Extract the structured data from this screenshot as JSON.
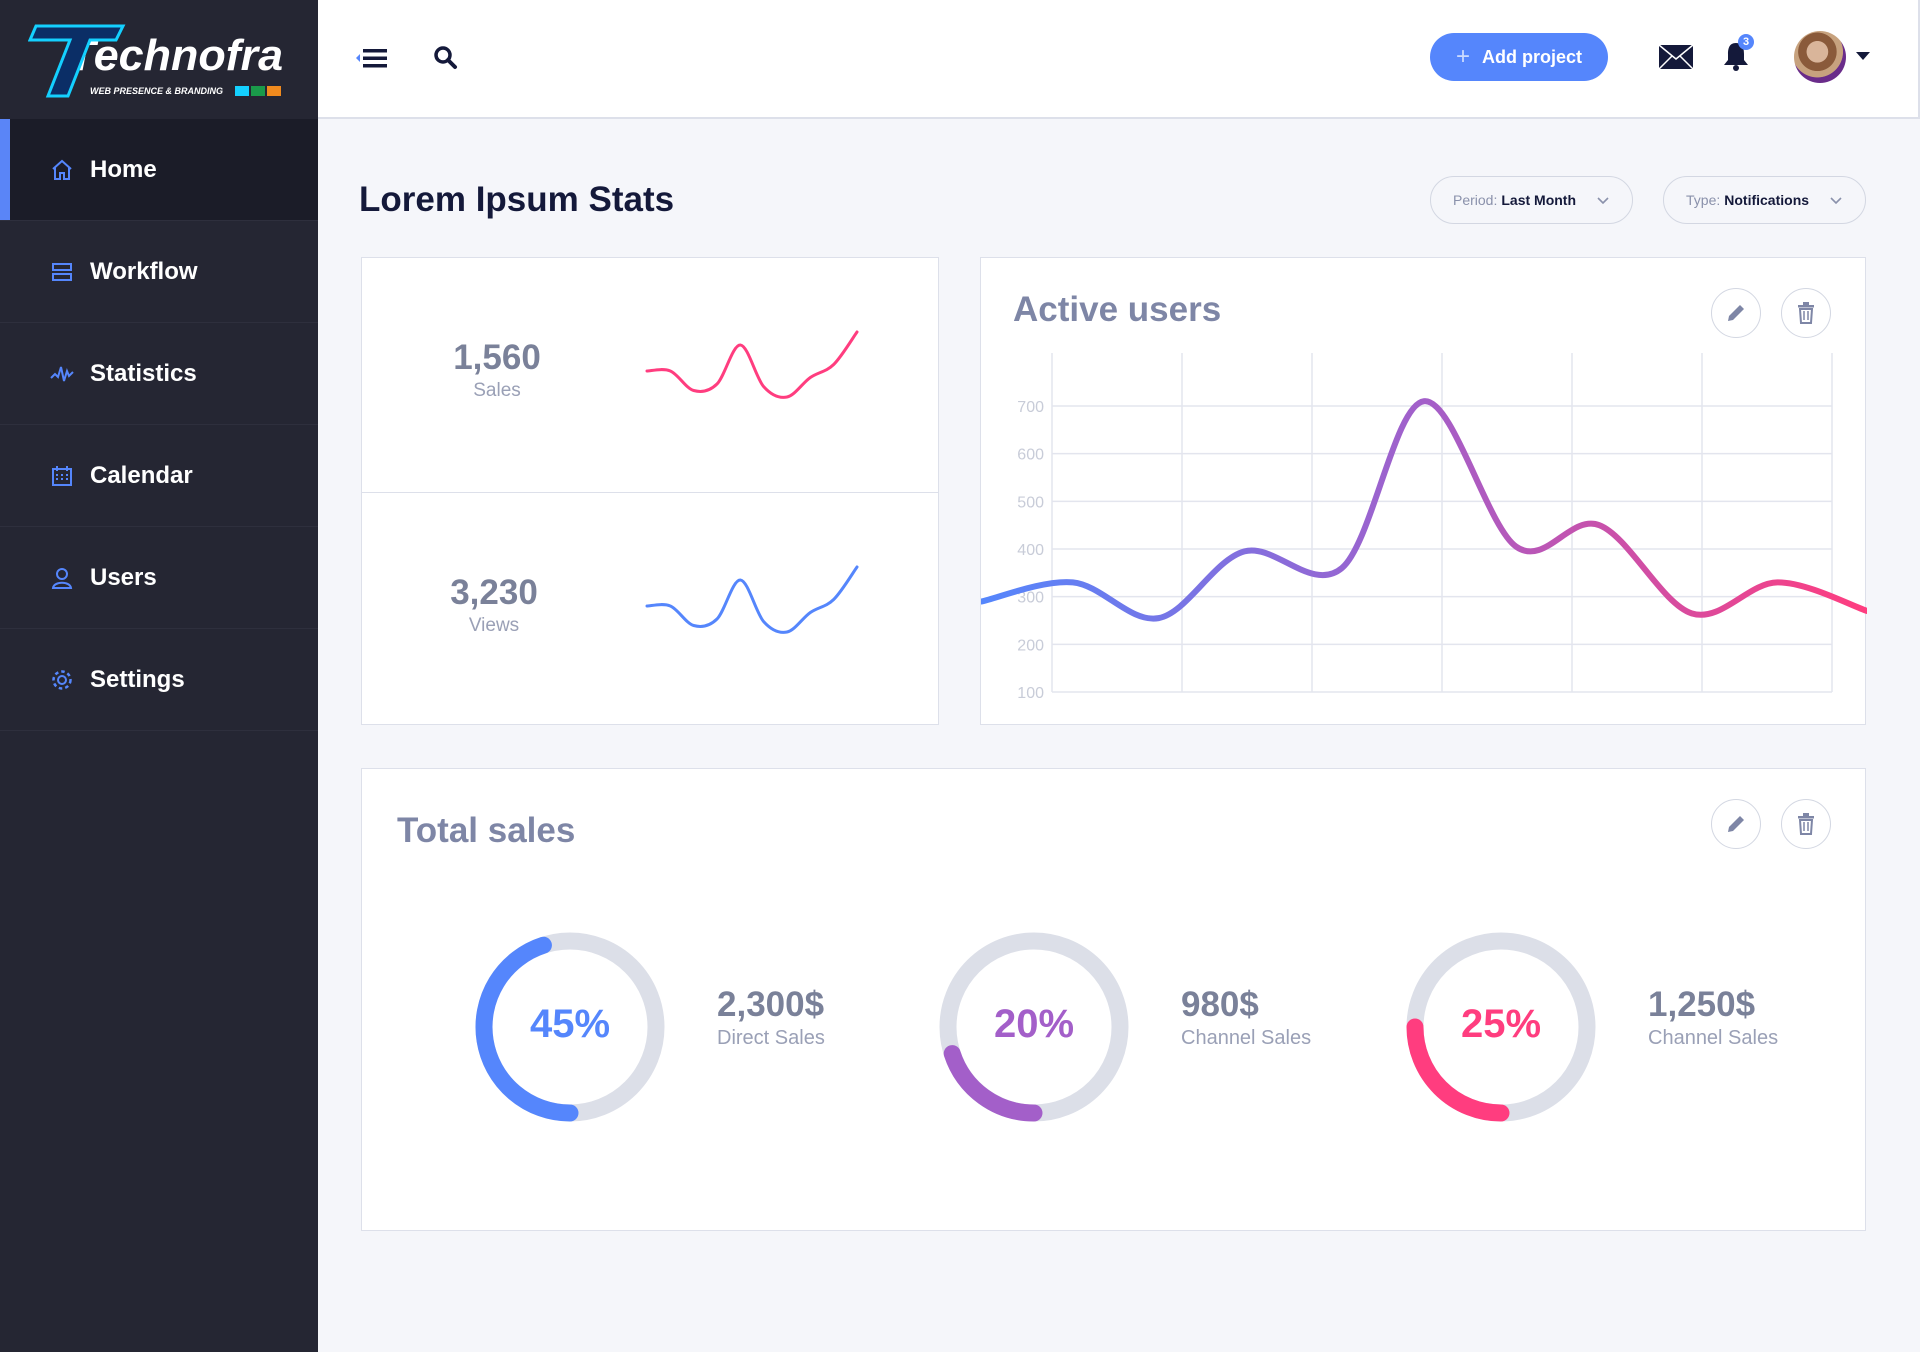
{
  "brand": {
    "name": "Technofra",
    "tagline": "WEB PRESENCE & BRANDING"
  },
  "sidebar": {
    "items": [
      {
        "label": "Home",
        "icon": "home-icon"
      },
      {
        "label": "Workflow",
        "icon": "workflow-icon"
      },
      {
        "label": "Statistics",
        "icon": "statistics-icon"
      },
      {
        "label": "Calendar",
        "icon": "calendar-icon"
      },
      {
        "label": "Users",
        "icon": "user-icon"
      },
      {
        "label": "Settings",
        "icon": "gear-icon"
      }
    ],
    "active": "Home"
  },
  "header": {
    "add_project": "Add project",
    "notification_count": "3"
  },
  "page": {
    "title": "Lorem Ipsum Stats",
    "period": {
      "key": "Period:",
      "value": "Last Month"
    },
    "type": {
      "key": "Type:",
      "value": "Notifications"
    }
  },
  "stats": [
    {
      "value": "1,560",
      "label": "Sales",
      "color": "#ff3d7f",
      "spark": [
        3,
        3,
        1.5,
        2,
        5,
        1.8,
        1,
        2.5,
        3.5,
        6
      ]
    },
    {
      "value": "3,230",
      "label": "Views",
      "color": "#5586fc",
      "spark": [
        3,
        3,
        1.5,
        2,
        5,
        1.8,
        1,
        2.5,
        3.5,
        6
      ]
    }
  ],
  "chart_data": {
    "type": "line",
    "title": "Active users",
    "yticks": [
      "100",
      "200",
      "300",
      "400",
      "500",
      "600",
      "700"
    ],
    "ylim": [
      100,
      700
    ],
    "xlim": [
      0,
      6
    ],
    "grid": true,
    "x": [
      -0.54,
      0.16,
      0.82,
      1.48,
      2.23,
      2.86,
      3.57,
      4.21,
      4.92,
      5.58,
      6.27
    ],
    "values": [
      290,
      330,
      255,
      395,
      360,
      710,
      405,
      450,
      265,
      330,
      270
    ],
    "gradient": [
      "#5586fc",
      "#a35fc9",
      "#ff3d7f"
    ]
  },
  "total_sales": {
    "title": "Total sales",
    "items": [
      {
        "percent": 45,
        "percent_label": "45%",
        "amount": "2,300$",
        "label": "Direct Sales",
        "color": "#5586fc"
      },
      {
        "percent": 20,
        "percent_label": "20%",
        "amount": "980$",
        "label": "Channel Sales",
        "color": "#a35fc9"
      },
      {
        "percent": 25,
        "percent_label": "25%",
        "amount": "1,250$",
        "label": "Channel Sales",
        "color": "#ff3d7f"
      }
    ]
  }
}
